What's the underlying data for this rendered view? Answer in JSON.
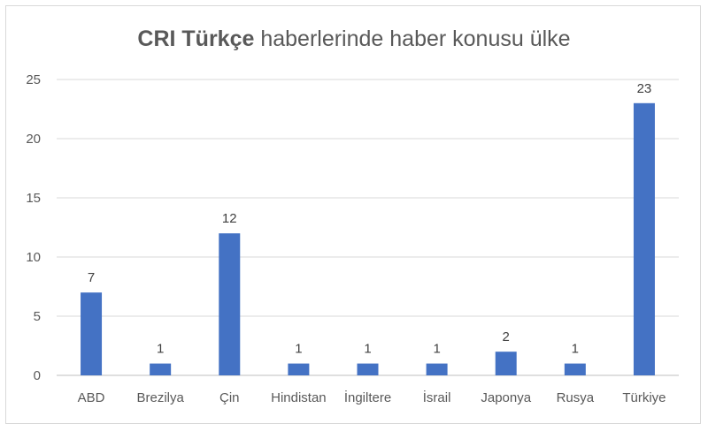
{
  "chart_data": {
    "type": "bar",
    "title_bold": "CRI Türkçe",
    "title_rest": " haberlerinde haber konusu ülke",
    "categories": [
      "ABD",
      "Brezilya",
      "Çin",
      "Hindistan",
      "İngiltere",
      "İsrail",
      "Japonya",
      "Rusya",
      "Türkiye"
    ],
    "values": [
      7,
      1,
      12,
      1,
      1,
      1,
      2,
      1,
      23
    ],
    "ylim": [
      0,
      25
    ],
    "yticks": [
      0,
      5,
      10,
      15,
      20,
      25
    ],
    "grid": true,
    "data_labels": true,
    "bar_color": "#4472c4",
    "grid_color": "#d9d9d9",
    "axis_color": "#bfbfbf"
  }
}
